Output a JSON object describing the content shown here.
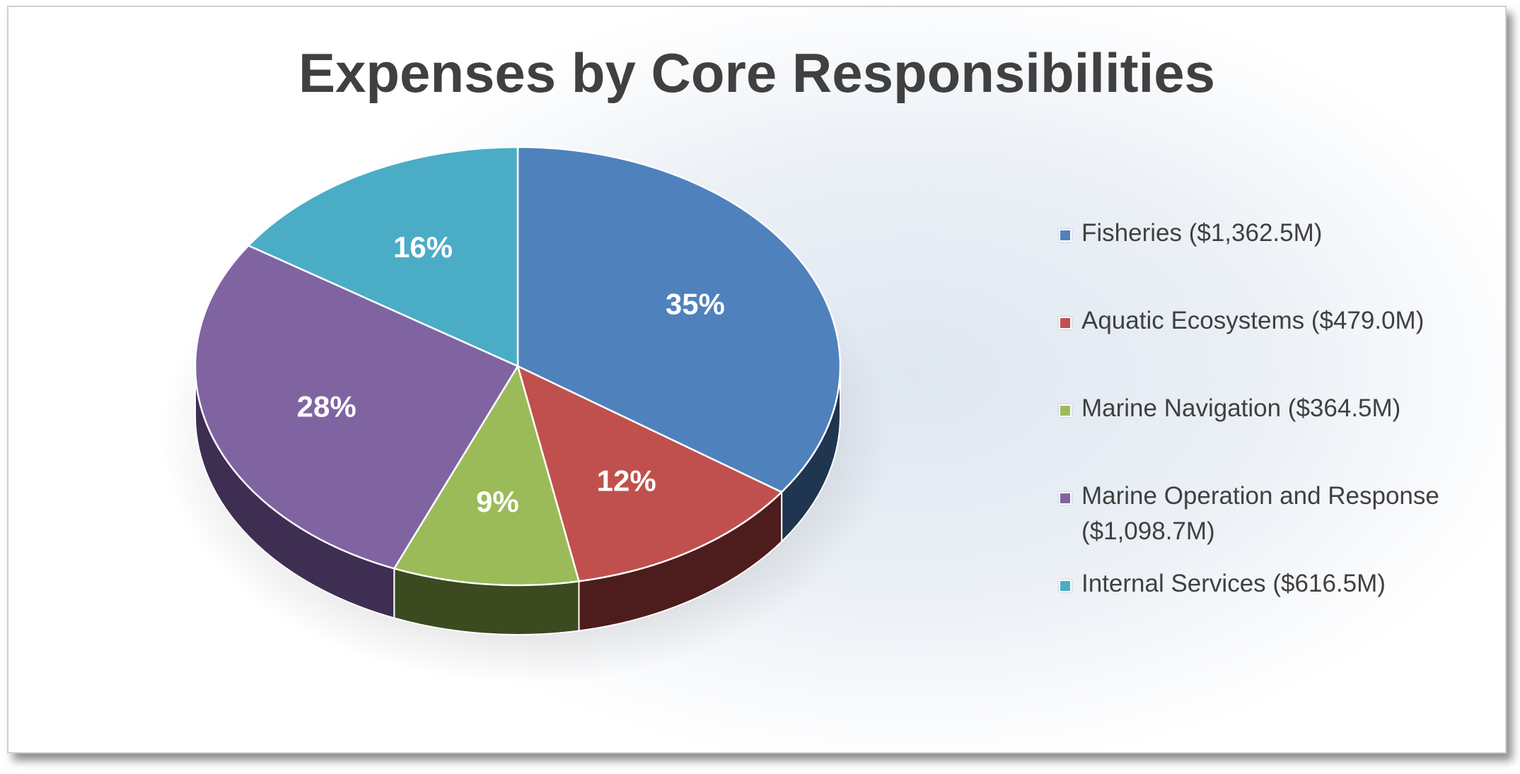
{
  "chart_data": {
    "type": "pie",
    "title": "Expenses by Core Responsibilities",
    "slices": [
      {
        "name": "Fisheries ($1,362.5M)",
        "value": 1362.5,
        "label": "35%",
        "color": "#4f81bd",
        "side_color": "#1f3550"
      },
      {
        "name": "Aquatic Ecosystems ($479.0M)",
        "value": 479.0,
        "label": "12%",
        "color": "#c0504d",
        "side_color": "#4d1c1c"
      },
      {
        "name": "Marine Navigation ($364.5M)",
        "value": 364.5,
        "label": "9%",
        "color": "#9bbb59",
        "side_color": "#3c4a20"
      },
      {
        "name": "Marine Operation and Response ($1,098.7M)",
        "value": 1098.7,
        "label": "28%",
        "color": "#8064a2",
        "side_color": "#3e2e52"
      },
      {
        "name": "Internal Services ($616.5M)",
        "value": 616.5,
        "label": "16%",
        "color": "#4bacc6",
        "side_color": "#1d4a57"
      }
    ],
    "legend_position": "right"
  }
}
